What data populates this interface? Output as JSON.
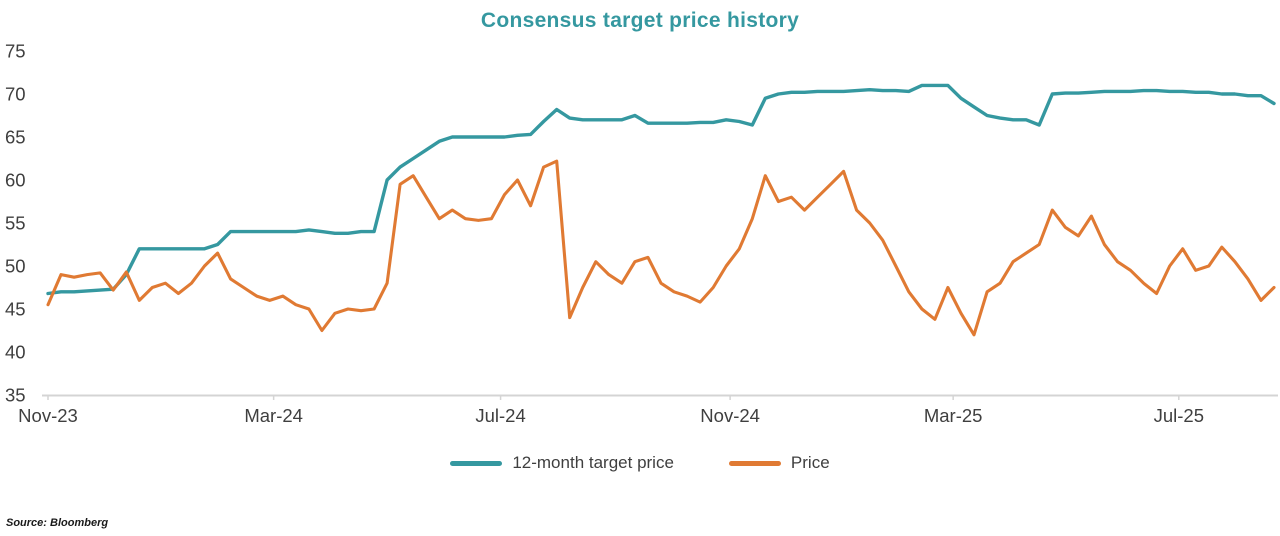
{
  "source": "Source: Bloomberg",
  "colors": {
    "accent_teal": "#3598A0",
    "accent_orange": "#E07A33",
    "axis_text": "#3f3f3f",
    "axis_line": "#d4d4d4"
  },
  "chart_data": {
    "type": "line",
    "title": "Consensus target price history",
    "xlabel": "",
    "ylabel": "",
    "ylim": [
      35,
      75
    ],
    "y_ticks": [
      35,
      40,
      45,
      50,
      55,
      60,
      65,
      70,
      75
    ],
    "grid": false,
    "legend_position": "bottom",
    "x_unit": "weekly samples, Nov-2023 through Sep-2025",
    "x_tick_labels": [
      "Nov-23",
      "Mar-24",
      "Jul-24",
      "Nov-24",
      "Mar-25",
      "Jul-25"
    ],
    "x_tick_weeks": [
      0,
      17.3,
      34.7,
      52.3,
      69.4,
      86.7
    ],
    "series": [
      {
        "name": "12-month target price",
        "color": "#3598A0",
        "values": [
          46.8,
          47,
          47,
          47.1,
          47.2,
          47.3,
          49,
          52,
          52,
          52,
          52,
          52,
          52,
          52.5,
          54,
          54,
          54,
          54,
          54,
          54,
          54.2,
          54,
          53.8,
          53.8,
          54,
          54,
          60,
          61.5,
          62.5,
          63.5,
          64.5,
          65,
          65,
          65,
          65,
          65,
          65.2,
          65.3,
          66.8,
          68.2,
          67.2,
          67,
          67,
          67,
          67,
          67.5,
          66.6,
          66.6,
          66.6,
          66.6,
          66.7,
          66.7,
          67,
          66.8,
          66.4,
          69.5,
          70,
          70.2,
          70.2,
          70.3,
          70.3,
          70.3,
          70.4,
          70.5,
          70.4,
          70.4,
          70.3,
          71,
          71,
          71,
          69.5,
          68.5,
          67.5,
          67.2,
          67,
          67,
          66.4,
          70,
          70.1,
          70.1,
          70.2,
          70.3,
          70.3,
          70.3,
          70.4,
          70.4,
          70.3,
          70.3,
          70.2,
          70.2,
          70,
          70,
          69.8,
          69.8,
          68.9
        ]
      },
      {
        "name": "Price",
        "color": "#E07A33",
        "values": [
          45.5,
          49,
          48.7,
          49,
          49.2,
          47.2,
          49.3,
          46,
          47.5,
          48,
          46.8,
          48,
          50,
          51.5,
          48.5,
          47.5,
          46.5,
          46,
          46.5,
          45.5,
          45,
          42.5,
          44.5,
          45,
          44.8,
          45,
          48,
          59.5,
          60.5,
          58,
          55.5,
          56.5,
          55.5,
          55.3,
          55.5,
          58.3,
          60,
          57,
          61.5,
          62.2,
          44,
          47.5,
          50.5,
          49,
          48,
          50.5,
          51,
          48,
          47,
          46.5,
          45.8,
          47.5,
          50,
          52,
          55.5,
          60.5,
          57.5,
          58,
          56.5,
          58,
          59.5,
          61,
          56.5,
          55,
          53,
          50,
          47,
          45,
          43.8,
          47.5,
          44.5,
          42,
          47,
          48,
          50.5,
          51.5,
          52.5,
          56.5,
          54.5,
          53.5,
          55.8,
          52.5,
          50.5,
          49.5,
          48,
          46.8,
          50,
          52,
          49.5,
          50,
          52.2,
          50.5,
          48.5,
          46,
          47.5
        ]
      }
    ]
  }
}
